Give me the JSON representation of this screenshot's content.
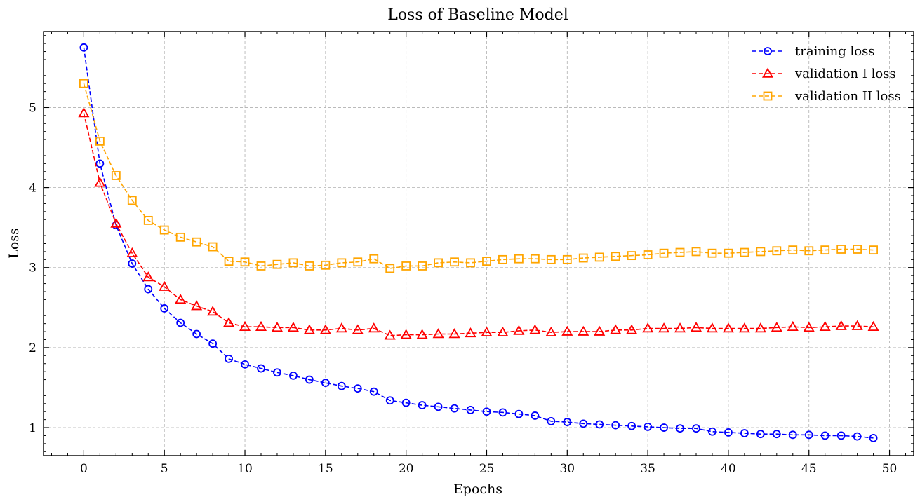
{
  "chart_data": {
    "type": "line",
    "title": "Loss of Baseline Model",
    "xlabel": "Epochs",
    "ylabel": "Loss",
    "xlim": [
      -2.5,
      51.5
    ],
    "ylim": [
      0.65,
      5.95
    ],
    "x_ticks": [
      0,
      5,
      10,
      15,
      20,
      25,
      30,
      35,
      40,
      45,
      50
    ],
    "y_ticks": [
      1,
      2,
      3,
      4,
      5
    ],
    "grid": true,
    "legend_position": "top-right",
    "x": [
      0,
      1,
      2,
      3,
      4,
      5,
      6,
      7,
      8,
      9,
      10,
      11,
      12,
      13,
      14,
      15,
      16,
      17,
      18,
      19,
      20,
      21,
      22,
      23,
      24,
      25,
      26,
      27,
      28,
      29,
      30,
      31,
      32,
      33,
      34,
      35,
      36,
      37,
      38,
      39,
      40,
      41,
      42,
      43,
      44,
      45,
      46,
      47,
      48,
      49
    ],
    "series": [
      {
        "name": "training loss",
        "color": "#0000ff",
        "marker": "circle",
        "values": [
          5.75,
          4.3,
          3.53,
          3.05,
          2.73,
          2.49,
          2.31,
          2.17,
          2.05,
          1.86,
          1.79,
          1.74,
          1.69,
          1.65,
          1.6,
          1.56,
          1.52,
          1.49,
          1.45,
          1.34,
          1.31,
          1.28,
          1.26,
          1.24,
          1.22,
          1.2,
          1.19,
          1.17,
          1.15,
          1.08,
          1.07,
          1.05,
          1.04,
          1.03,
          1.02,
          1.01,
          1.0,
          0.99,
          0.99,
          0.95,
          0.94,
          0.93,
          0.92,
          0.92,
          0.91,
          0.91,
          0.9,
          0.9,
          0.89,
          0.87
        ]
      },
      {
        "name": "validation I loss",
        "color": "#ff0000",
        "marker": "triangle",
        "values": [
          4.93,
          4.06,
          3.55,
          3.18,
          2.88,
          2.76,
          2.6,
          2.52,
          2.45,
          2.31,
          2.26,
          2.26,
          2.25,
          2.25,
          2.22,
          2.22,
          2.24,
          2.22,
          2.24,
          2.15,
          2.16,
          2.16,
          2.17,
          2.17,
          2.18,
          2.19,
          2.19,
          2.21,
          2.22,
          2.19,
          2.2,
          2.2,
          2.2,
          2.22,
          2.22,
          2.24,
          2.24,
          2.24,
          2.25,
          2.24,
          2.24,
          2.24,
          2.24,
          2.25,
          2.26,
          2.25,
          2.26,
          2.27,
          2.27,
          2.26
        ]
      },
      {
        "name": "validation II loss",
        "color": "#ffa500",
        "marker": "square",
        "values": [
          5.3,
          4.58,
          4.15,
          3.84,
          3.59,
          3.47,
          3.38,
          3.32,
          3.26,
          3.08,
          3.07,
          3.02,
          3.04,
          3.06,
          3.02,
          3.03,
          3.06,
          3.07,
          3.11,
          2.99,
          3.02,
          3.02,
          3.06,
          3.07,
          3.06,
          3.08,
          3.1,
          3.11,
          3.11,
          3.1,
          3.1,
          3.12,
          3.13,
          3.14,
          3.15,
          3.16,
          3.18,
          3.19,
          3.2,
          3.18,
          3.18,
          3.19,
          3.2,
          3.21,
          3.22,
          3.21,
          3.22,
          3.23,
          3.23,
          3.22
        ]
      }
    ]
  }
}
